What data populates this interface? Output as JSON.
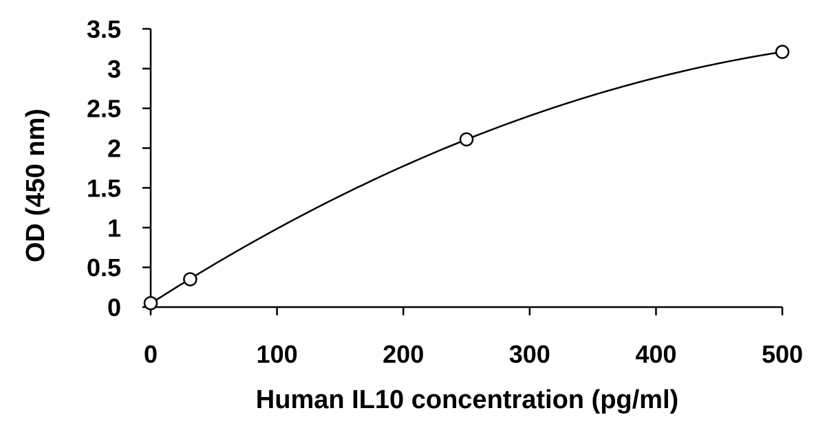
{
  "chart_data": {
    "type": "scatter",
    "title": "",
    "xlabel": "Human IL10 concentration (pg/ml)",
    "ylabel": "OD (450 nm)",
    "xlim": [
      0,
      500
    ],
    "ylim": [
      0,
      3.5
    ],
    "xticks": [
      0,
      100,
      200,
      300,
      400,
      500
    ],
    "yticks": [
      0,
      0.5,
      1,
      1.5,
      2,
      2.5,
      3,
      3.5
    ],
    "xtick_labels": [
      "0",
      "100",
      "200",
      "300",
      "400",
      "500"
    ],
    "ytick_labels": [
      "0",
      "0.5",
      "1",
      "1.5",
      "2",
      "2.5",
      "3",
      "3.5"
    ],
    "grid": false,
    "legend": "none",
    "series": [
      {
        "x": [
          0,
          31.25,
          250,
          500
        ],
        "y": [
          0.05,
          0.35,
          2.11,
          3.21
        ],
        "marker": "open-circle",
        "fit": "polynomial",
        "color": "#000000"
      }
    ]
  }
}
